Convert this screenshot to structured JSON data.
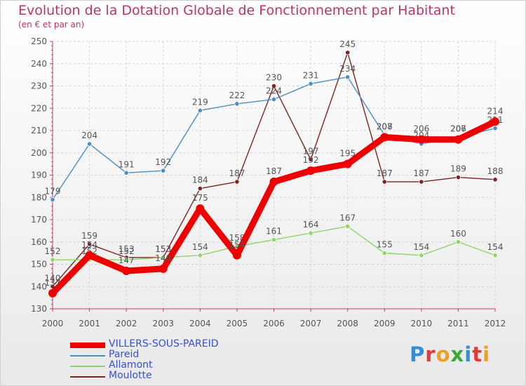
{
  "chart_data": {
    "type": "line",
    "title": "Evolution de la Dotation Globale de Fonctionnement par Habitant",
    "subtitle": "(en € et par an)",
    "x": [
      "2000",
      "2001",
      "2002",
      "2003",
      "2004",
      "2005",
      "2006",
      "2007",
      "2008",
      "2009",
      "2010",
      "2011",
      "2012"
    ],
    "ylim": [
      130,
      250
    ],
    "yticks": [
      130,
      140,
      150,
      160,
      170,
      180,
      190,
      200,
      210,
      220,
      230,
      240,
      250
    ],
    "grid": true,
    "series": [
      {
        "name": "Moulotte",
        "color": "#7a2424",
        "values": [
          140,
          159,
          153,
          153,
          184,
          187,
          230,
          197,
          245,
          187,
          187,
          189,
          188
        ]
      },
      {
        "name": "Allamont",
        "color": "#8fd46a",
        "values": [
          152,
          152,
          152,
          153,
          154,
          158,
          161,
          164,
          167,
          155,
          154,
          160,
          154
        ]
      },
      {
        "name": "Pareid",
        "color": "#4a8ec4",
        "values": [
          179,
          204,
          191,
          192,
          219,
          222,
          224,
          231,
          234,
          208,
          204,
          207,
          211
        ]
      },
      {
        "name": "VILLERS-SOUS-PAREID",
        "color": "#ee0000",
        "values": [
          137,
          154,
          147,
          148,
          175,
          154,
          187,
          192,
          195,
          207,
          206,
          206,
          214
        ]
      }
    ],
    "legend": [
      "VILLERS-SOUS-PAREID",
      "Pareid",
      "Allamont",
      "Moulotte"
    ]
  },
  "brand": {
    "letters": [
      "P",
      "r",
      "o",
      "x",
      "i",
      "t",
      "i"
    ],
    "colors": [
      "#2f8fd8",
      "#e03a3a",
      "#f0a020",
      "#3aa83a",
      "#2f8fd8",
      "#e03a3a",
      "#f0a020"
    ]
  }
}
